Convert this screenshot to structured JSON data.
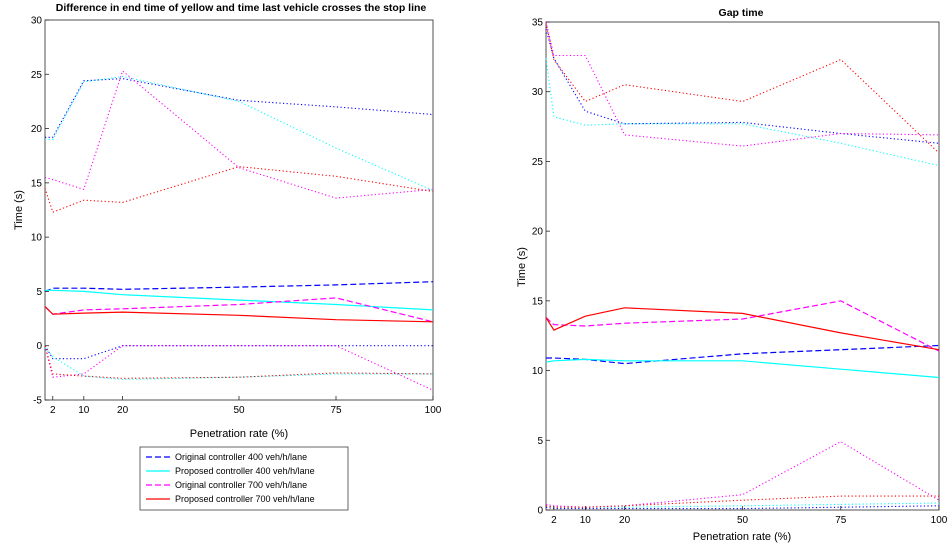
{
  "chart_data": [
    {
      "type": "line",
      "title": "Difference in end time of yellow and time last vehicle crosses the stop line",
      "xlabel": "Penetration rate (%)",
      "ylabel": "Time (s)",
      "xlim": [
        0,
        100
      ],
      "ylim": [
        -5,
        30
      ],
      "xticks": [
        "2",
        "10",
        "20",
        "50",
        "75",
        "100"
      ],
      "yticks": [
        "-5",
        "0",
        "5",
        "10",
        "15",
        "20",
        "25",
        "30"
      ],
      "x": [
        0,
        2,
        10,
        20,
        50,
        75,
        100
      ],
      "grid": false,
      "legend_position": "below",
      "series": [
        {
          "name": "Original controller 400 veh/h/lane",
          "color": "#0000ff",
          "style": "dashed",
          "values": [
            5.0,
            5.3,
            5.3,
            5.2,
            5.4,
            5.6,
            5.9
          ]
        },
        {
          "name": "Proposed controller 400 veh/h/lane",
          "color": "#00ffff",
          "style": "solid",
          "values": [
            5.1,
            5.1,
            5.0,
            4.7,
            4.2,
            3.8,
            3.3
          ]
        },
        {
          "name": "Original controller 700 veh/h/lane",
          "color": "#ff00ff",
          "style": "dashed",
          "values": [
            3.6,
            2.9,
            3.3,
            3.4,
            3.8,
            4.4,
            2.2
          ]
        },
        {
          "name": "Proposed controller 700 veh/h/lane",
          "color": "#ff0000",
          "style": "solid",
          "values": [
            3.6,
            2.9,
            3.0,
            3.1,
            2.8,
            2.4,
            2.2
          ]
        },
        {
          "color": "#0000ff",
          "style": "dotted",
          "values": [
            19.2,
            19.2,
            24.4,
            24.6,
            22.6,
            22.0,
            21.3
          ]
        },
        {
          "color": "#00ffff",
          "style": "dotted",
          "values": [
            19.0,
            19.0,
            24.3,
            24.8,
            22.5,
            18.2,
            14.3
          ]
        },
        {
          "color": "#ff00ff",
          "style": "dotted",
          "values": [
            15.5,
            15.3,
            14.4,
            25.3,
            16.4,
            13.6,
            14.4
          ]
        },
        {
          "color": "#ff0000",
          "style": "dotted",
          "values": [
            14.5,
            12.3,
            13.4,
            13.2,
            16.5,
            15.6,
            14.2
          ]
        },
        {
          "color": "#0000ff",
          "style": "dotted",
          "values": [
            0.0,
            -1.2,
            -1.2,
            0.0,
            0.0,
            0.0,
            0.0
          ]
        },
        {
          "color": "#00ffff",
          "style": "dotted",
          "values": [
            -0.2,
            -1.0,
            -2.8,
            -3.1,
            -2.9,
            -2.6,
            -2.6
          ]
        },
        {
          "color": "#ff00ff",
          "style": "dotted",
          "values": [
            0.0,
            -2.9,
            -2.6,
            0.0,
            0.0,
            0.0,
            -4.1
          ]
        },
        {
          "color": "#ff0000",
          "style": "dotted",
          "values": [
            0.0,
            -2.6,
            -2.8,
            -3.0,
            -2.9,
            -2.5,
            -2.6
          ]
        }
      ]
    },
    {
      "type": "line",
      "title": "Gap time",
      "xlabel": "Penetration rate (%)",
      "ylabel": "Time (s)",
      "xlim": [
        0,
        100
      ],
      "ylim": [
        0,
        35
      ],
      "xticks": [
        "2",
        "10",
        "20",
        "50",
        "75",
        "100"
      ],
      "yticks": [
        "0",
        "5",
        "10",
        "15",
        "20",
        "25",
        "30",
        "35"
      ],
      "x": [
        0,
        2,
        10,
        20,
        50,
        75,
        100
      ],
      "grid": false,
      "series": [
        {
          "name": "Original controller 400 veh/h/lane",
          "color": "#0000ff",
          "style": "dashed",
          "values": [
            10.9,
            10.9,
            10.8,
            10.5,
            11.2,
            11.5,
            11.8
          ]
        },
        {
          "name": "Proposed controller 400 veh/h/lane",
          "color": "#00ffff",
          "style": "solid",
          "values": [
            10.6,
            10.7,
            10.8,
            10.7,
            10.7,
            10.1,
            9.5
          ]
        },
        {
          "name": "Original controller 700 veh/h/lane",
          "color": "#ff00ff",
          "style": "dashed",
          "values": [
            13.8,
            13.3,
            13.2,
            13.4,
            13.7,
            15.0,
            11.4
          ]
        },
        {
          "name": "Proposed controller 700 veh/h/lane",
          "color": "#ff0000",
          "style": "solid",
          "values": [
            13.8,
            12.9,
            13.9,
            14.5,
            14.1,
            12.7,
            11.5
          ]
        },
        {
          "color": "#0000ff",
          "style": "dotted",
          "values": [
            34.5,
            32.4,
            28.6,
            27.7,
            27.8,
            27.0,
            26.3
          ]
        },
        {
          "color": "#00ffff",
          "style": "dotted",
          "values": [
            32.4,
            28.2,
            27.6,
            27.7,
            27.7,
            26.3,
            24.7
          ]
        },
        {
          "color": "#ff00ff",
          "style": "dotted",
          "values": [
            35.0,
            32.6,
            32.6,
            26.9,
            26.1,
            27.0,
            26.9
          ]
        },
        {
          "color": "#ff0000",
          "style": "dotted",
          "values": [
            34.9,
            32.3,
            29.3,
            30.5,
            29.3,
            32.3,
            25.6
          ]
        },
        {
          "color": "#0000ff",
          "style": "dotted",
          "values": [
            0.2,
            0.1,
            0.1,
            0.1,
            0.1,
            0.2,
            0.3
          ]
        },
        {
          "color": "#00ffff",
          "style": "dotted",
          "values": [
            0.3,
            0.2,
            0.2,
            0.2,
            0.3,
            0.4,
            0.5
          ]
        },
        {
          "color": "#ff00ff",
          "style": "dotted",
          "values": [
            0.4,
            0.3,
            0.2,
            0.3,
            1.1,
            4.9,
            0.7
          ]
        },
        {
          "color": "#ff0000",
          "style": "dotted",
          "values": [
            0.3,
            0.2,
            0.2,
            0.3,
            0.7,
            1.0,
            1.0
          ]
        }
      ]
    }
  ]
}
